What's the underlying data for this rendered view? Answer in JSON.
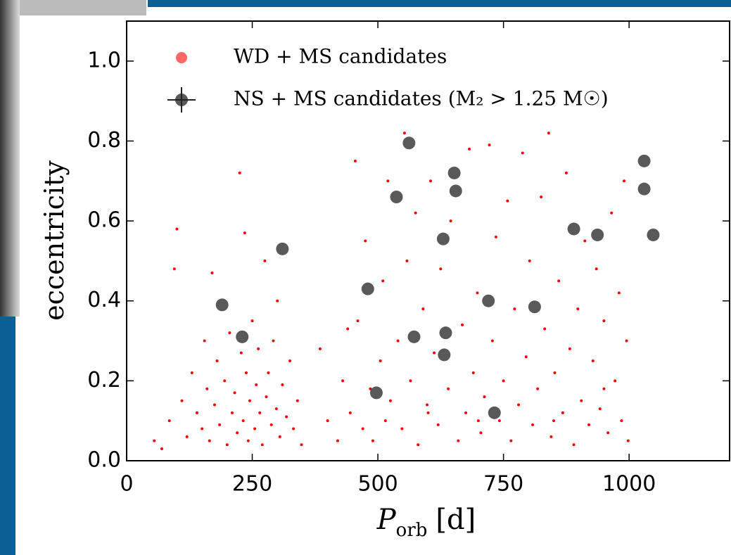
{
  "chart_data": {
    "type": "scatter",
    "xlabel_parts": [
      "P",
      "orb",
      "[d]"
    ],
    "ylabel": "eccentricity",
    "xlim": [
      0,
      1200
    ],
    "ylim": [
      0,
      1.1
    ],
    "xticks": [
      0,
      250,
      500,
      750,
      1000
    ],
    "yticks": [
      {
        "value": 0,
        "label": "0.0"
      },
      0.2,
      0.4,
      0.6,
      0.8,
      {
        "value": 1,
        "label": "1.0"
      }
    ],
    "legend": "upper left",
    "series": [
      {
        "name": "WD + MS candidates",
        "color": "#ff0000",
        "x": [
          55,
          70,
          85,
          95,
          100,
          110,
          120,
          130,
          140,
          150,
          155,
          160,
          165,
          170,
          175,
          180,
          185,
          195,
          200,
          205,
          210,
          215,
          220,
          225,
          228,
          232,
          238,
          242,
          245,
          250,
          255,
          258,
          262,
          265,
          270,
          275,
          278,
          282,
          288,
          292,
          298,
          305,
          310,
          318,
          325,
          332,
          340,
          348,
          235,
          300,
          385,
          400,
          420,
          430,
          445,
          455,
          460,
          470,
          475,
          485,
          490,
          505,
          510,
          515,
          520,
          525,
          540,
          548,
          553,
          558,
          565,
          575,
          580,
          590,
          598,
          605,
          612,
          620,
          625,
          640,
          645,
          660,
          668,
          675,
          682,
          690,
          698,
          705,
          712,
          722,
          728,
          735,
          742,
          750,
          758,
          765,
          772,
          780,
          788,
          795,
          802,
          808,
          818,
          825,
          832,
          840,
          845,
          852,
          860,
          868,
          875,
          882,
          890,
          898,
          905,
          912,
          920,
          928,
          935,
          942,
          950,
          958,
          965,
          972,
          980,
          985,
          990,
          995,
          998,
          440,
          600,
          700,
          850,
          950
        ],
        "y": [
          0.05,
          0.03,
          0.1,
          0.48,
          0.58,
          0.15,
          0.06,
          0.22,
          0.12,
          0.08,
          0.3,
          0.18,
          0.05,
          0.47,
          0.14,
          0.25,
          0.09,
          0.2,
          0.04,
          0.32,
          0.12,
          0.17,
          0.07,
          0.72,
          0.27,
          0.1,
          0.22,
          0.05,
          0.15,
          0.35,
          0.08,
          0.19,
          0.28,
          0.12,
          0.04,
          0.5,
          0.16,
          0.22,
          0.09,
          0.3,
          0.13,
          0.06,
          0.19,
          0.11,
          0.25,
          0.08,
          0.15,
          0.04,
          0.57,
          0.4,
          0.28,
          0.1,
          0.05,
          0.2,
          0.12,
          0.75,
          0.35,
          0.08,
          0.55,
          0.18,
          0.05,
          0.25,
          0.45,
          0.1,
          0.7,
          0.15,
          0.3,
          0.08,
          0.82,
          0.5,
          0.2,
          0.62,
          0.04,
          0.38,
          0.14,
          0.7,
          0.27,
          0.09,
          0.48,
          0.18,
          0.6,
          0.05,
          0.34,
          0.12,
          0.78,
          0.22,
          0.42,
          0.07,
          0.16,
          0.79,
          0.3,
          0.56,
          0.1,
          0.2,
          0.65,
          0.05,
          0.38,
          0.14,
          0.77,
          0.26,
          0.5,
          0.09,
          0.18,
          0.66,
          0.33,
          0.82,
          0.06,
          0.22,
          0.45,
          0.12,
          0.72,
          0.28,
          0.04,
          0.38,
          0.15,
          0.55,
          0.09,
          0.25,
          0.48,
          0.13,
          0.35,
          0.07,
          0.62,
          0.2,
          0.42,
          0.1,
          0.7,
          0.3,
          0.05,
          0.33,
          0.12,
          0.1,
          0.1,
          0.18
        ]
      },
      {
        "name": "NS + MS candidates (M₂ > 1.25 M☉)",
        "color": "#222222",
        "x": [
          190,
          230,
          310,
          480,
          497,
          537,
          562,
          572,
          630,
          632,
          635,
          652,
          655,
          720,
          732,
          812,
          890,
          937,
          1030,
          1030,
          1048
        ],
        "y": [
          0.39,
          0.31,
          0.53,
          0.43,
          0.17,
          0.66,
          0.795,
          0.31,
          0.555,
          0.265,
          0.32,
          0.72,
          0.675,
          0.4,
          0.12,
          0.385,
          0.58,
          0.565,
          0.75,
          0.68,
          0.565
        ]
      }
    ]
  }
}
